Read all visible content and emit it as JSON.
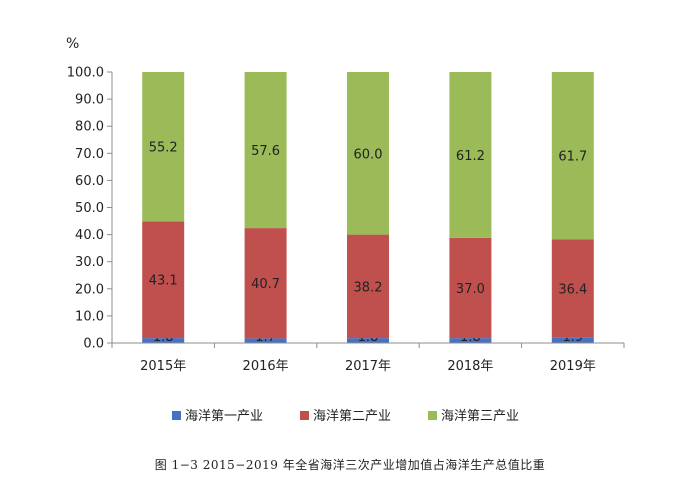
{
  "chart_data": {
    "type": "bar",
    "stacked": true,
    "categories": [
      "2015年",
      "2016年",
      "2017年",
      "2018年",
      "2019年"
    ],
    "series": [
      {
        "name": "海洋第一产业",
        "color": "#4472C4",
        "values": [
          1.8,
          1.7,
          1.8,
          1.8,
          1.9
        ],
        "labels": [
          "1.8",
          "1.7",
          "1.8",
          "1.8",
          "1.9"
        ]
      },
      {
        "name": "海洋第二产业",
        "color": "#C0504D",
        "values": [
          43.1,
          40.7,
          38.2,
          37.0,
          36.4
        ],
        "labels": [
          "43.1",
          "40.7",
          "38.2",
          "37.0",
          "36.4"
        ]
      },
      {
        "name": "海洋第三产业",
        "color": "#9BBB59",
        "values": [
          55.2,
          57.6,
          60.0,
          61.2,
          61.7
        ],
        "labels": [
          "55.2",
          "57.6",
          "60.0",
          "61.2",
          "61.7"
        ]
      }
    ],
    "ylim": [
      0,
      100
    ],
    "yticks": [
      0,
      10,
      20,
      30,
      40,
      50,
      60,
      70,
      80,
      90,
      100
    ],
    "ytick_labels": [
      "0.0",
      "10.0",
      "20.0",
      "30.0",
      "40.0",
      "50.0",
      "60.0",
      "70.0",
      "80.0",
      "90.0",
      "100.0"
    ],
    "yunit": "%",
    "grid": false,
    "legend_position": "bottom",
    "caption": "图 1−3   2015−2019 年全省海洋三次产业增加值占海洋生产总值比重"
  }
}
